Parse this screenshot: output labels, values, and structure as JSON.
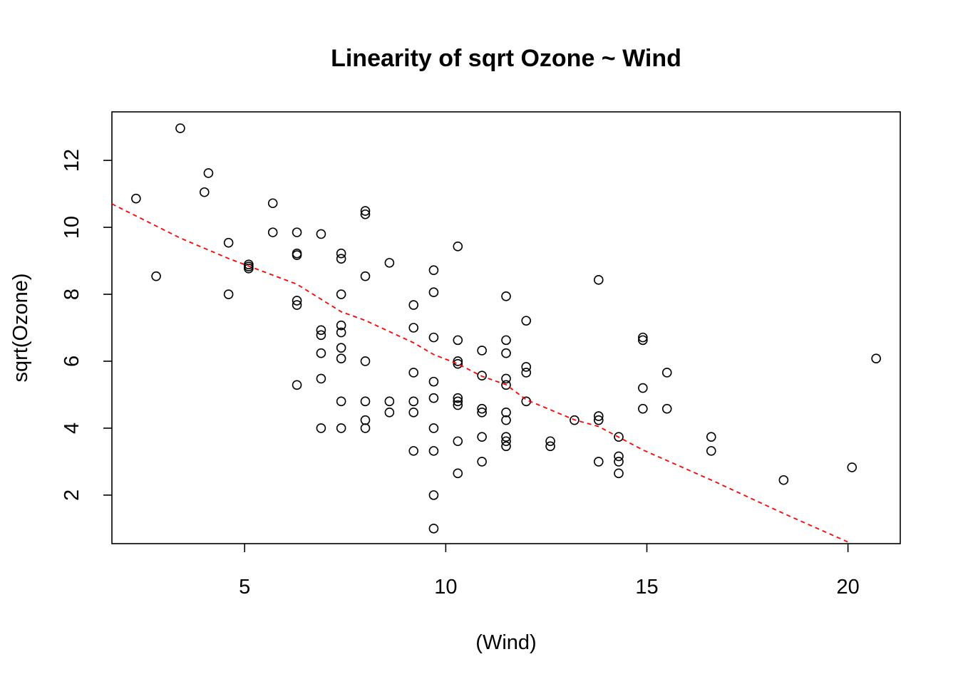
{
  "chart_data": {
    "type": "scatter",
    "title": "Linearity of sqrt Ozone ~ Wind",
    "xlabel": "(Wind)",
    "ylabel": "sqrt(Ozone)",
    "xlim": [
      1.7,
      21.3
    ],
    "ylim": [
      0.55,
      13.45
    ],
    "xticks": [
      5,
      10,
      15,
      20
    ],
    "yticks": [
      2,
      4,
      6,
      8,
      10,
      12
    ],
    "grid": false,
    "colors": {
      "points": "#000000",
      "trend": "#ff0000"
    },
    "points": [
      [
        2.3,
        10.86
      ],
      [
        2.8,
        8.54
      ],
      [
        3.4,
        12.96
      ],
      [
        4.0,
        11.05
      ],
      [
        4.1,
        11.62
      ],
      [
        4.6,
        9.54
      ],
      [
        4.6,
        8.0
      ],
      [
        5.1,
        8.89
      ],
      [
        5.1,
        8.83
      ],
      [
        5.1,
        8.77
      ],
      [
        5.7,
        10.72
      ],
      [
        5.7,
        9.85
      ],
      [
        6.3,
        9.85
      ],
      [
        6.3,
        9.22
      ],
      [
        6.3,
        9.17
      ],
      [
        6.3,
        7.81
      ],
      [
        6.3,
        7.68
      ],
      [
        6.3,
        5.29
      ],
      [
        6.9,
        9.8
      ],
      [
        6.9,
        6.93
      ],
      [
        6.9,
        6.78
      ],
      [
        6.9,
        6.24
      ],
      [
        6.9,
        5.48
      ],
      [
        6.9,
        4.0
      ],
      [
        7.4,
        9.22
      ],
      [
        7.4,
        9.06
      ],
      [
        7.4,
        8.0
      ],
      [
        7.4,
        7.07
      ],
      [
        7.4,
        6.86
      ],
      [
        7.4,
        6.4
      ],
      [
        7.4,
        6.08
      ],
      [
        7.4,
        4.8
      ],
      [
        7.4,
        4.0
      ],
      [
        8.0,
        10.49
      ],
      [
        8.0,
        10.39
      ],
      [
        8.0,
        8.54
      ],
      [
        8.0,
        6.0
      ],
      [
        8.0,
        4.8
      ],
      [
        8.0,
        4.24
      ],
      [
        8.0,
        4.0
      ],
      [
        8.6,
        8.94
      ],
      [
        8.6,
        4.8
      ],
      [
        8.6,
        4.47
      ],
      [
        9.2,
        7.68
      ],
      [
        9.2,
        7.0
      ],
      [
        9.2,
        5.66
      ],
      [
        9.2,
        4.8
      ],
      [
        9.2,
        4.47
      ],
      [
        9.2,
        3.32
      ],
      [
        9.7,
        8.72
      ],
      [
        9.7,
        8.06
      ],
      [
        9.7,
        6.71
      ],
      [
        9.7,
        5.39
      ],
      [
        9.7,
        4.9
      ],
      [
        9.7,
        4.0
      ],
      [
        9.7,
        3.32
      ],
      [
        9.7,
        2.0
      ],
      [
        9.7,
        1.0
      ],
      [
        10.3,
        9.43
      ],
      [
        10.3,
        6.63
      ],
      [
        10.3,
        6.0
      ],
      [
        10.3,
        5.92
      ],
      [
        10.3,
        4.9
      ],
      [
        10.3,
        4.8
      ],
      [
        10.3,
        4.69
      ],
      [
        10.3,
        3.61
      ],
      [
        10.3,
        2.65
      ],
      [
        10.9,
        6.32
      ],
      [
        10.9,
        5.57
      ],
      [
        10.9,
        4.58
      ],
      [
        10.9,
        4.47
      ],
      [
        10.9,
        3.74
      ],
      [
        10.9,
        3.0
      ],
      [
        11.5,
        7.94
      ],
      [
        11.5,
        6.63
      ],
      [
        11.5,
        6.24
      ],
      [
        11.5,
        5.48
      ],
      [
        11.5,
        5.29
      ],
      [
        11.5,
        4.47
      ],
      [
        11.5,
        4.24
      ],
      [
        11.5,
        3.74
      ],
      [
        11.5,
        3.61
      ],
      [
        11.5,
        3.46
      ],
      [
        12.0,
        7.21
      ],
      [
        12.0,
        5.83
      ],
      [
        12.0,
        5.66
      ],
      [
        12.0,
        4.8
      ],
      [
        12.6,
        3.61
      ],
      [
        12.6,
        3.46
      ],
      [
        13.2,
        4.24
      ],
      [
        13.8,
        8.43
      ],
      [
        13.8,
        4.36
      ],
      [
        13.8,
        4.24
      ],
      [
        13.8,
        3.0
      ],
      [
        14.3,
        3.74
      ],
      [
        14.3,
        3.16
      ],
      [
        14.3,
        3.0
      ],
      [
        14.3,
        2.65
      ],
      [
        14.9,
        6.71
      ],
      [
        14.9,
        6.63
      ],
      [
        14.9,
        5.2
      ],
      [
        14.9,
        4.58
      ],
      [
        15.5,
        5.66
      ],
      [
        15.5,
        4.58
      ],
      [
        16.6,
        3.74
      ],
      [
        16.6,
        3.32
      ],
      [
        18.4,
        2.45
      ],
      [
        20.1,
        2.83
      ],
      [
        20.7,
        6.08
      ]
    ],
    "trend": {
      "style": "dashed",
      "x": [
        1.7,
        3.4,
        4.6,
        6.3,
        7.4,
        8.0,
        9.2,
        9.7,
        10.3,
        10.9,
        11.5,
        12.0,
        13.2,
        13.8,
        14.9,
        16.6,
        18.4,
        20.0
      ],
      "y": [
        10.7,
        9.68,
        9.07,
        8.3,
        7.48,
        7.22,
        6.55,
        6.2,
        5.92,
        5.55,
        5.3,
        4.85,
        4.25,
        4.05,
        3.35,
        2.45,
        1.45,
        0.6
      ]
    }
  }
}
